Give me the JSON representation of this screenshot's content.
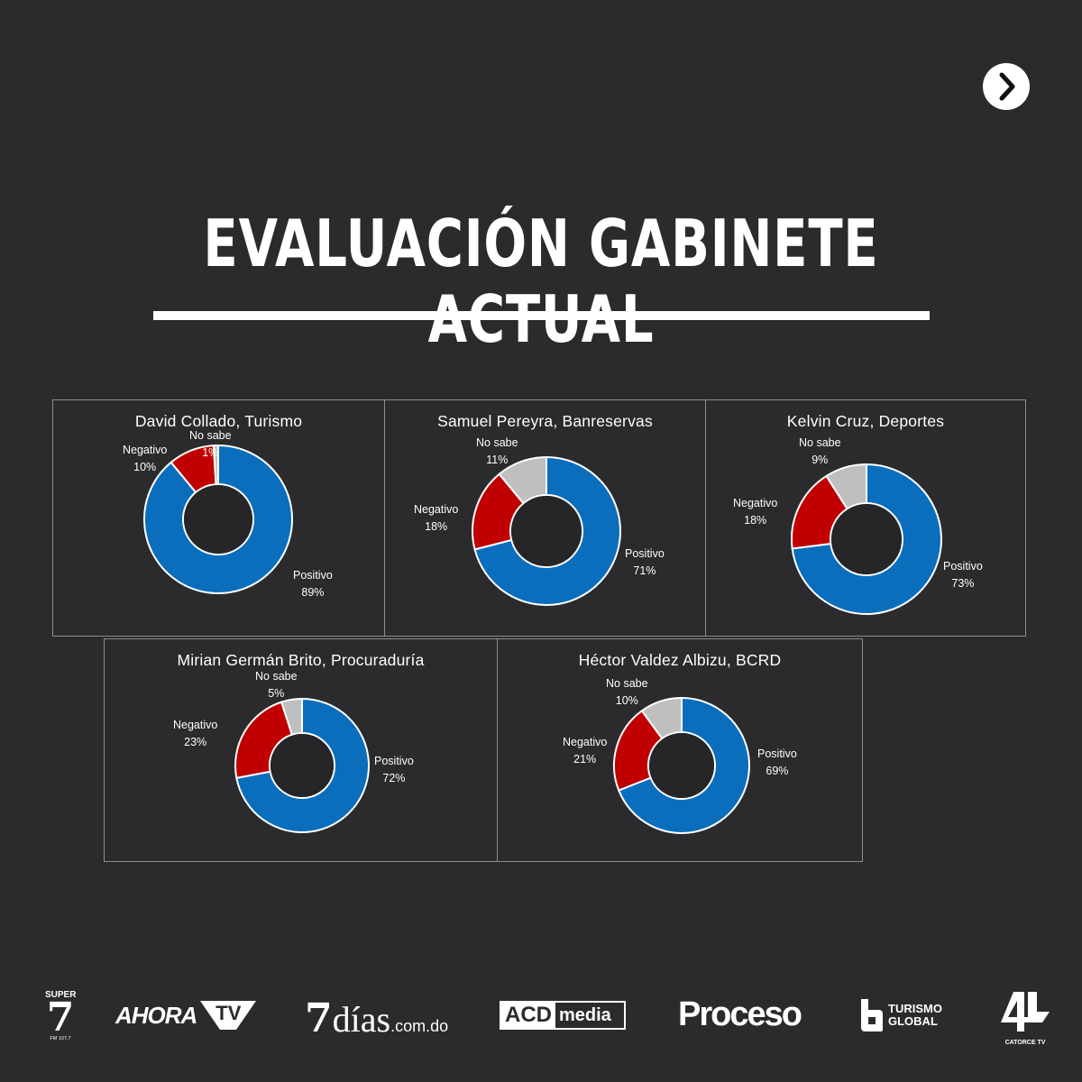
{
  "title": "EVALUACIÓN GABINETE ACTUAL",
  "colors": {
    "positivo": "#0a6ebd",
    "negativo": "#c00000",
    "no_sabe": "#bfbfbf",
    "background": "#2b2a2c"
  },
  "chart_data": [
    {
      "type": "pie",
      "title": "David Collado, Turismo",
      "labels": [
        "Positivo",
        "Negativo",
        "No sabe"
      ],
      "values": [
        89,
        10,
        1
      ],
      "value_labels": [
        "89%",
        "10%",
        "1%"
      ]
    },
    {
      "type": "pie",
      "title": "Samuel Pereyra, Banreservas",
      "labels": [
        "Positivo",
        "Negativo",
        "No sabe"
      ],
      "values": [
        71,
        18,
        11
      ],
      "value_labels": [
        "71%",
        "18%",
        "11%"
      ]
    },
    {
      "type": "pie",
      "title": "Kelvin Cruz, Deportes",
      "labels": [
        "Positivo",
        "Negativo",
        "No sabe"
      ],
      "values": [
        73,
        18,
        9
      ],
      "value_labels": [
        "73%",
        "18%",
        "9%"
      ]
    },
    {
      "type": "pie",
      "title": "Mirian Germán Brito, Procuraduría",
      "labels": [
        "Positivo",
        "Negativo",
        "No sabe"
      ],
      "values": [
        72,
        23,
        5
      ],
      "value_labels": [
        "72%",
        "23%",
        "5%"
      ]
    },
    {
      "type": "pie",
      "title": "Héctor Valdez Albizu, BCRD",
      "labels": [
        "Positivo",
        "Negativo",
        "No sabe"
      ],
      "values": [
        69,
        21,
        10
      ],
      "value_labels": [
        "69%",
        "21%",
        "10%"
      ]
    }
  ],
  "logos": {
    "super7": {
      "top": "SUPER",
      "num": "7",
      "sub": "FM 107.7"
    },
    "ahora": "AHORA",
    "ahora_tv": "TV",
    "sietedias": "díias",
    "sietedias_num": "7",
    "sietedias_dom": ".com.do",
    "acd": "ACD",
    "acd_media": "media",
    "proceso": "Proceso",
    "turismo_global": [
      "TURISMO",
      "GLOBAL"
    ],
    "catorce": "CATORCE TV"
  },
  "nav": {
    "next_icon": "chevron-right-icon"
  }
}
